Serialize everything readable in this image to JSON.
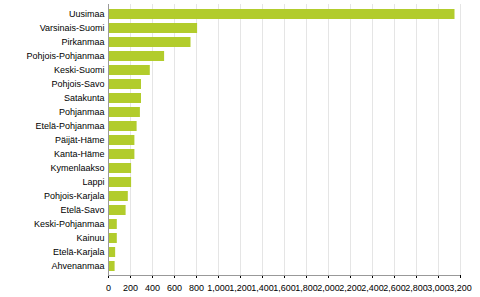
{
  "chart_data": {
    "type": "bar",
    "orientation": "horizontal",
    "categories": [
      "Uusimaa",
      "Varsinais-Suomi",
      "Pirkanmaa",
      "Pohjois-Pohjanmaa",
      "Keski-Suomi",
      "Pohjois-Savo",
      "Satakunta",
      "Pohjanmaa",
      "Etelä-Pohjanmaa",
      "Päijät-Häme",
      "Kanta-Häme",
      "Kymenlaakso",
      "Lappi",
      "Pohjois-Karjala",
      "Etelä-Savo",
      "Keski-Pohjanmaa",
      "Kainuu",
      "Etelä-Karjala",
      "Ahvenanmaa"
    ],
    "values": [
      3150,
      810,
      750,
      510,
      380,
      300,
      300,
      290,
      260,
      240,
      240,
      210,
      210,
      180,
      160,
      80,
      80,
      65,
      60
    ],
    "color": "#b2cc2c",
    "xlim": [
      0,
      3200
    ],
    "xticks": [
      0,
      200,
      400,
      600,
      800,
      1000,
      1200,
      1400,
      1600,
      1800,
      2000,
      2200,
      2400,
      2600,
      2800,
      3000,
      3200
    ],
    "grid": true
  }
}
